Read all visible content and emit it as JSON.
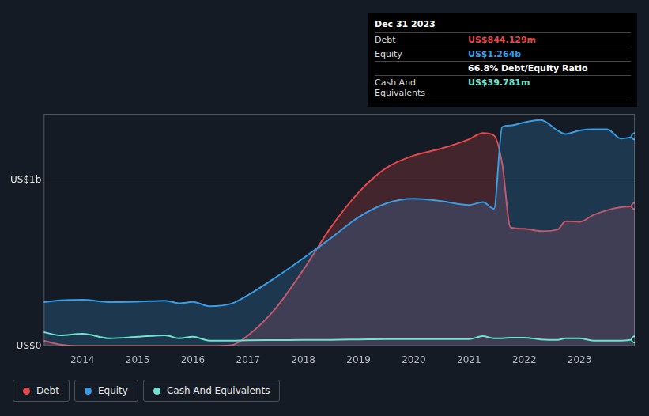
{
  "chart_data": {
    "type": "area",
    "x": [
      2013.3,
      2013.6,
      2014,
      2014.5,
      2015,
      2015.5,
      2015.75,
      2016,
      2016.3,
      2016.7,
      2017,
      2017.5,
      2018,
      2018.5,
      2019,
      2019.5,
      2020,
      2020.5,
      2021,
      2021.25,
      2021.45,
      2021.6,
      2021.75,
      2022,
      2022.3,
      2022.6,
      2022.75,
      2023,
      2023.25,
      2023.5,
      2023.75,
      2024
    ],
    "series": [
      {
        "name": "Debt",
        "color": "#e5484d",
        "values": [
          33,
          9,
          0,
          0,
          0,
          0,
          0,
          0,
          0,
          5,
          65,
          228,
          460,
          716,
          926,
          1074,
          1149,
          1191,
          1247,
          1284,
          1270,
          1100,
          716,
          707,
          693,
          702,
          753,
          749,
          790,
          819,
          837,
          844
        ]
      },
      {
        "name": "Equity",
        "color": "#3a9ce4",
        "values": [
          265,
          276,
          279,
          265,
          268,
          274,
          258,
          266,
          240,
          256,
          307,
          414,
          530,
          651,
          777,
          860,
          888,
          874,
          851,
          868,
          828,
          1321,
          1330,
          1349,
          1363,
          1300,
          1279,
          1300,
          1307,
          1307,
          1251,
          1264
        ]
      },
      {
        "name": "Cash And Equivalents",
        "color": "#6fe3cf",
        "values": [
          84,
          65,
          74,
          47,
          56,
          65,
          47,
          56,
          33,
          33,
          35,
          36,
          37,
          38,
          40,
          42,
          42,
          42,
          42,
          60,
          47,
          47,
          51,
          51,
          40,
          37,
          47,
          47,
          33,
          33,
          33,
          40
        ]
      }
    ],
    "xlim": [
      2013.3,
      2024
    ],
    "xticks": [
      2014,
      2015,
      2016,
      2017,
      2018,
      2019,
      2020,
      2021,
      2022,
      2023
    ],
    "ylim": [
      0,
      1400
    ],
    "yticks": [
      {
        "value": 0,
        "label": "US$0"
      },
      {
        "value": 1000,
        "label": "US$1b"
      }
    ],
    "grid": true,
    "legend": "bottom-left",
    "info_box": {
      "title": "Dec 31 2023",
      "rows": [
        {
          "label": "Debt",
          "value": "US$844.129m"
        },
        {
          "label": "Equity",
          "value": "US$1.264b"
        },
        {
          "value": "66.8% Debt/Equity Ratio"
        },
        {
          "label": "Cash And Equivalents",
          "value": "US$39.781m"
        }
      ]
    }
  }
}
